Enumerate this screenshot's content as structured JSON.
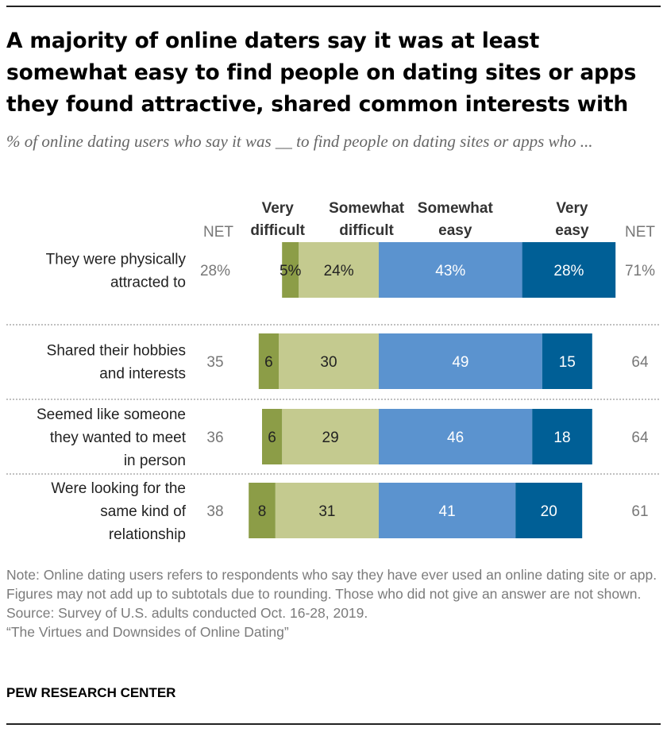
{
  "header": {
    "title": "A majority of online daters say it was at least somewhat easy to find people on dating sites or apps they found attractive, shared common interests with",
    "subtitle": "% of online dating users who say it was __ to find people on dating sites or apps who ..."
  },
  "chart_data": {
    "type": "bar",
    "orientation": "horizontal",
    "stacking": "diverging",
    "net_label": "NET",
    "categories": [
      "They were physically attracted to",
      "Shared their hobbies and interests",
      "Seemed like someone they wanted to meet in person",
      "Were looking for the same kind of relationship"
    ],
    "series": [
      {
        "name": "Very difficult",
        "side": "difficult",
        "color": "#8c9d47",
        "values": [
          5,
          6,
          6,
          8
        ],
        "labels": [
          "5%",
          "6",
          "6",
          "8"
        ]
      },
      {
        "name": "Somewhat difficult",
        "side": "difficult",
        "color": "#c4ca8f",
        "values": [
          24,
          30,
          29,
          31
        ],
        "labels": [
          "24%",
          "30",
          "29",
          "31"
        ]
      },
      {
        "name": "Somewhat easy",
        "side": "easy",
        "color": "#5b93cf",
        "values": [
          43,
          49,
          46,
          41
        ],
        "labels": [
          "43%",
          "49",
          "46",
          "41"
        ]
      },
      {
        "name": "Very easy",
        "side": "easy",
        "color": "#005f96",
        "values": [
          28,
          15,
          18,
          20
        ],
        "labels": [
          "28%",
          "15",
          "18",
          "20"
        ]
      }
    ],
    "net_difficult": {
      "values": [
        28,
        35,
        36,
        38
      ],
      "labels": [
        "28%",
        "35",
        "36",
        "38"
      ]
    },
    "net_easy": {
      "values": [
        71,
        64,
        64,
        61
      ],
      "labels": [
        "71%",
        "64",
        "64",
        "61"
      ]
    }
  },
  "footer": {
    "note": "Note: Online dating users refers to respondents who say they have ever used an online dating site or app. Figures may not add up to subtotals due to rounding. Those who did not give an answer are not shown.",
    "source": "Source: Survey of U.S. adults conducted Oct. 16-28, 2019.",
    "report": "“The Virtues and Downsides of Online Dating”",
    "org": "PEW RESEARCH CENTER"
  }
}
